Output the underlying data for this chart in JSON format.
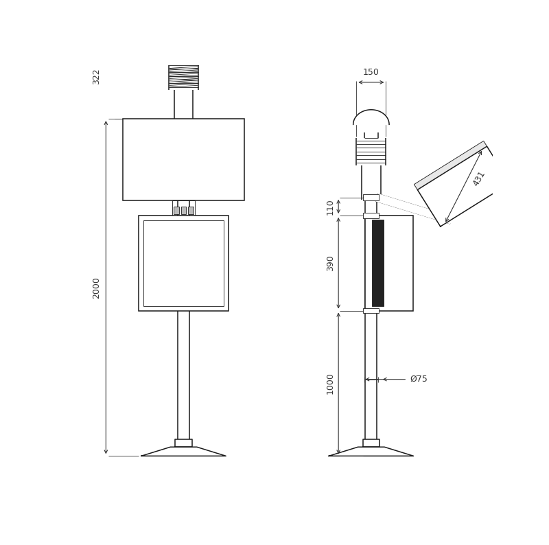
{
  "bg_color": "#ffffff",
  "line_color": "#1a1a1a",
  "dim_color": "#333333",
  "lw": 1.1,
  "tlw": 0.6,
  "fig_width": 8.0,
  "fig_height": 7.94
}
